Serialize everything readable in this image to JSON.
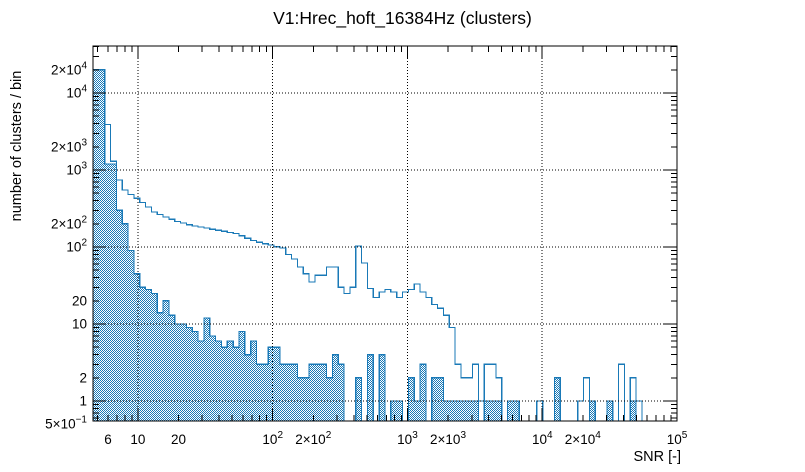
{
  "title": "V1:Hrec_hoft_16384Hz (clusters)",
  "colors": {
    "histogram_blue": "#1979b7",
    "grid_black": "#000000",
    "background": "#ffffff"
  },
  "x_axis": {
    "title": "SNR [-]",
    "scale": "log",
    "range": [
      4.64,
      100000
    ],
    "tick_labels": [
      {
        "v": 6,
        "label": "6"
      },
      {
        "v": 10,
        "label": "10"
      },
      {
        "v": 20,
        "label": "20"
      },
      {
        "v": 100,
        "label": "10^2"
      },
      {
        "v": 200,
        "label": "2×10^2"
      },
      {
        "v": 1000,
        "label": "10^3"
      },
      {
        "v": 2000,
        "label": "2×10^3"
      },
      {
        "v": 10000,
        "label": "10^4"
      },
      {
        "v": 20000,
        "label": "2×10^4"
      },
      {
        "v": 100000,
        "label": "10^5"
      }
    ]
  },
  "y_axis": {
    "title": "number of clusters / bin",
    "scale": "log",
    "range": [
      0.55,
      40800
    ],
    "tick_labels": [
      {
        "v": 20000,
        "label": "2×10^4"
      },
      {
        "v": 10000,
        "label": "10^4"
      },
      {
        "v": 2000,
        "label": "2×10^3"
      },
      {
        "v": 1000,
        "label": "10^3"
      },
      {
        "v": 200,
        "label": "2×10^2"
      },
      {
        "v": 100,
        "label": "10^2"
      },
      {
        "v": 20,
        "label": "20"
      },
      {
        "v": 10,
        "label": "10"
      },
      {
        "v": 2,
        "label": "2"
      },
      {
        "v": 1,
        "label": "1"
      },
      {
        "v": 0.5,
        "label": "5×10^−1"
      }
    ]
  },
  "chart_data": {
    "type": "histogram",
    "x_scale": "log",
    "y_scale": "log",
    "grid": "dotted-at-decades",
    "legend": "none",
    "bins": {
      "count": 100,
      "min": 4.64,
      "max": 100000,
      "spacing": "log"
    },
    "series": [
      {
        "name": "line_histogram",
        "style": "step-outline",
        "values": [
          20000,
          20000,
          3900,
          1300,
          740,
          550,
          480,
          430,
          380,
          330,
          285,
          265,
          245,
          230,
          215,
          205,
          195,
          188,
          182,
          176,
          170,
          165,
          160,
          155,
          150,
          140,
          130,
          122,
          115,
          110,
          106,
          101,
          97,
          80,
          70,
          55,
          45,
          35,
          43,
          43,
          55,
          55,
          30,
          25,
          30,
          103,
          62,
          29,
          22,
          26,
          28,
          26,
          22,
          26,
          28,
          33,
          26,
          22,
          18,
          16,
          13,
          9,
          3,
          2,
          2,
          3,
          1,
          3,
          3,
          2,
          0,
          0,
          0,
          0,
          0,
          0,
          1,
          0,
          0,
          0,
          0,
          0,
          0,
          1,
          2,
          1,
          0,
          0,
          0,
          0,
          3,
          0,
          2,
          1,
          0,
          0,
          0,
          0,
          0,
          0
        ]
      },
      {
        "name": "filled_histogram",
        "style": "step-checker-fill",
        "values": [
          20000,
          20000,
          1200,
          1200,
          300,
          200,
          90,
          45,
          30,
          28,
          25,
          14,
          20,
          13,
          10,
          10,
          9,
          8,
          6,
          12,
          7,
          6,
          5,
          6,
          5,
          8,
          4,
          6,
          3,
          3,
          5,
          5,
          3,
          3,
          3,
          2,
          2,
          3,
          3,
          3,
          2,
          4,
          3,
          0,
          0,
          2,
          0,
          4,
          0,
          4,
          0,
          1,
          1,
          0,
          2,
          1,
          3,
          0,
          2,
          2,
          1,
          1,
          1,
          1,
          1,
          1,
          0,
          1,
          1,
          1,
          0,
          1,
          1,
          0,
          0,
          0,
          0,
          0,
          0,
          2,
          0,
          0,
          0,
          0,
          0,
          1,
          0,
          0,
          1,
          0,
          0,
          0,
          1,
          0,
          0,
          0,
          0,
          0,
          0,
          0
        ]
      }
    ]
  }
}
